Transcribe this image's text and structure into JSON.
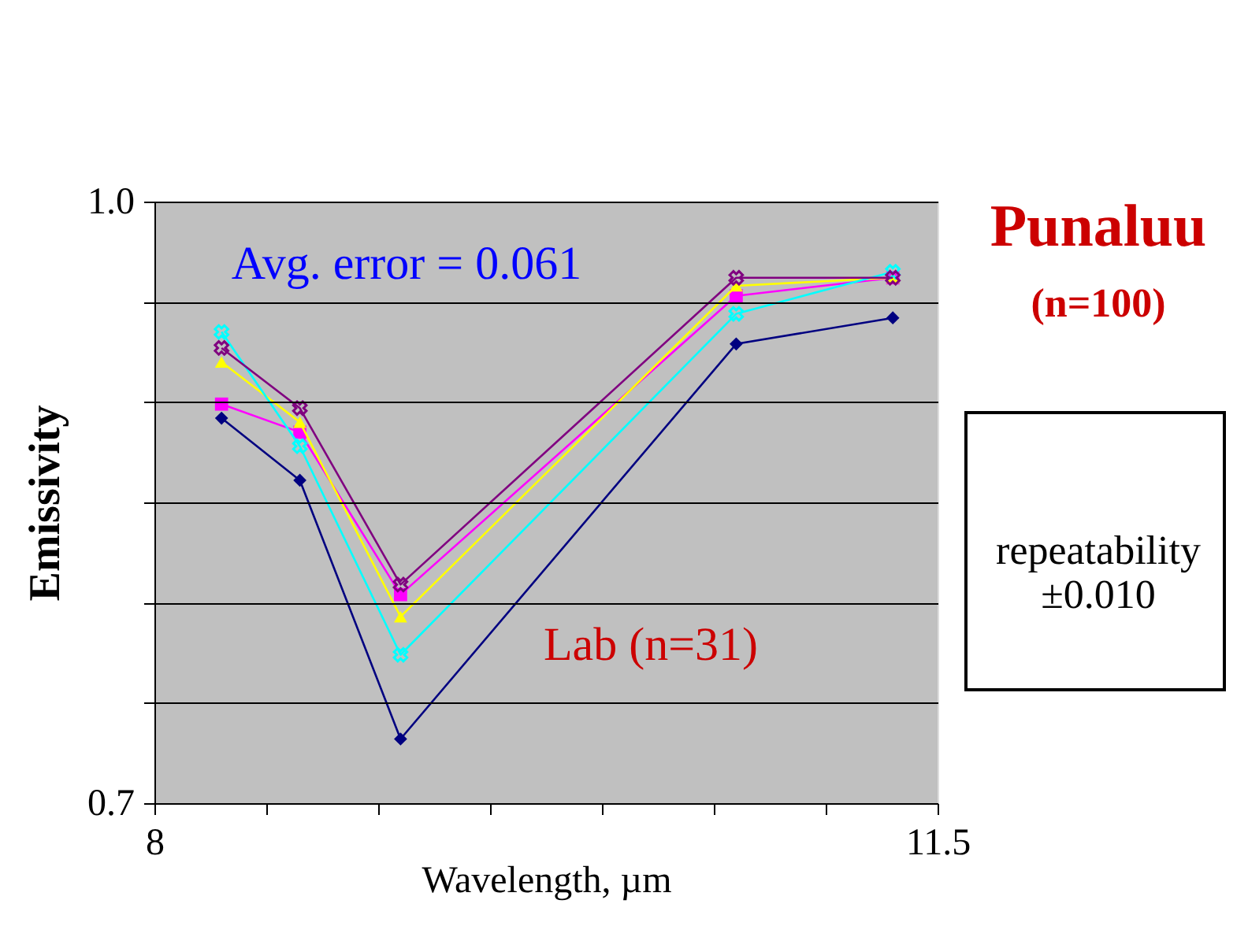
{
  "chart_data": {
    "type": "line",
    "title": "Punaluu",
    "subtitle": "(n=100)",
    "xlabel": "Wavelength, µm",
    "ylabel": "Emissivity",
    "x": [
      8.3,
      8.65,
      9.1,
      10.6,
      11.3
    ],
    "series": [
      {
        "color": "#000080",
        "marker": "diamond",
        "values": [
          0.892,
          0.861,
          0.732,
          0.929,
          0.942
        ]
      },
      {
        "color": "#ff00ff",
        "marker": "square",
        "values": [
          0.899,
          0.885,
          0.804,
          0.953,
          0.962
        ]
      },
      {
        "color": "#ffff00",
        "marker": "triangle",
        "values": [
          0.92,
          0.89,
          0.793,
          0.958,
          0.962
        ]
      },
      {
        "color": "#00ffff",
        "marker": "cross",
        "values": [
          0.935,
          0.878,
          0.774,
          0.944,
          0.965
        ]
      },
      {
        "color": "#800080",
        "marker": "cross",
        "values": [
          0.927,
          0.897,
          0.809,
          0.962,
          0.962
        ]
      }
    ],
    "annotations": [
      "Avg. error = 0.061",
      "Lab (n=31)",
      "repeatability\n±0.010"
    ],
    "xlim": [
      8,
      11.5
    ],
    "xticks": [
      8,
      {
        "value": 8.5,
        "label": null
      },
      {
        "value": 9,
        "label": null
      },
      {
        "value": 9.5,
        "label": null
      },
      {
        "value": 10,
        "label": null
      },
      {
        "value": 10.5,
        "label": null
      },
      {
        "value": 11,
        "label": null
      },
      11.5
    ],
    "ylim": [
      0.7,
      1.0
    ],
    "yticks": [
      0.7,
      {
        "value": 0.75,
        "label": null
      },
      {
        "value": 0.8,
        "label": null
      },
      {
        "value": 0.85,
        "label": null
      },
      {
        "value": 0.9,
        "label": null
      },
      {
        "value": 0.95,
        "label": null
      },
      {
        "value": 1.0,
        "label": "1.0"
      }
    ],
    "grid": "y",
    "line_style": "solid"
  }
}
